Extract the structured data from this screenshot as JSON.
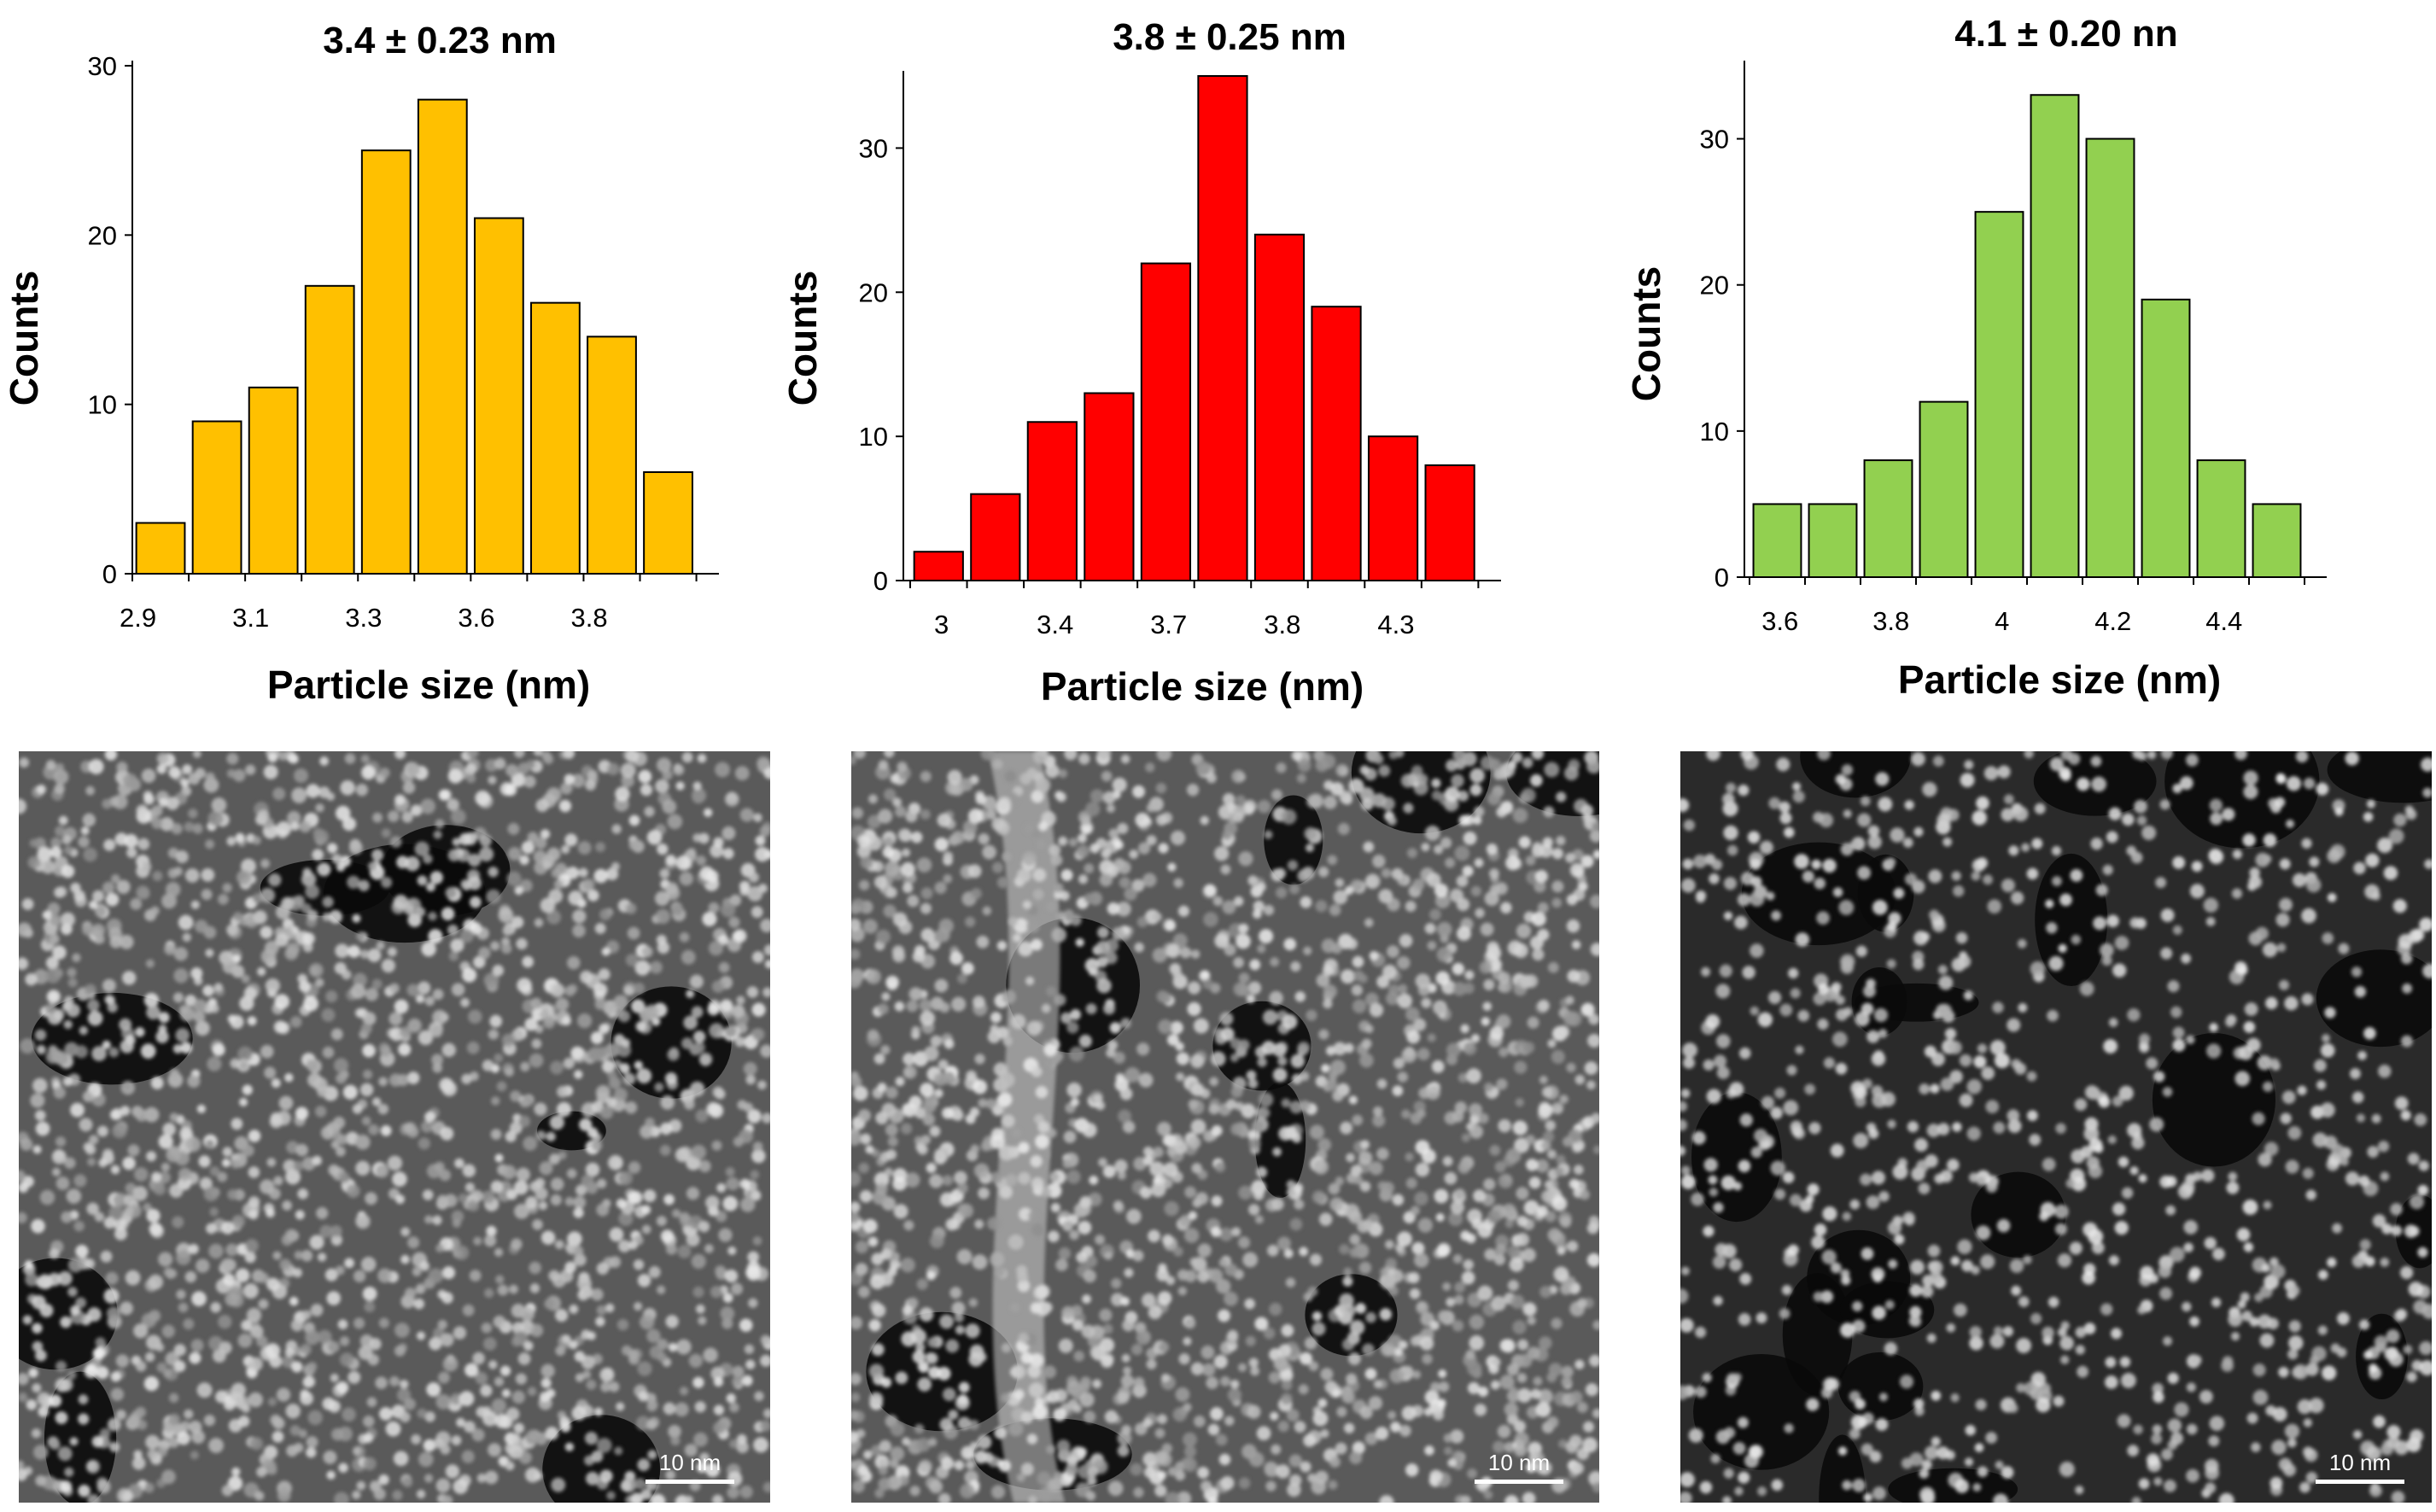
{
  "chart_data": [
    {
      "type": "bar",
      "title": "3.4 ± 0.23 nm",
      "xlabel": "Particle size (nm)",
      "ylabel": "Counts",
      "ylim": [
        0,
        30
      ],
      "yticks": [
        0,
        10,
        20,
        30
      ],
      "x_tick_labels": [
        "2.9",
        "3.1",
        "3.3",
        "3.6",
        "3.8"
      ],
      "values": [
        3,
        9,
        11,
        17,
        25,
        28,
        21,
        16,
        14,
        6
      ],
      "color": "#FFC000"
    },
    {
      "type": "bar",
      "title": "3.8 ± 0.25 nm",
      "xlabel": "Particle size (nm)",
      "ylabel": "Counts",
      "ylim": [
        0,
        35
      ],
      "yticks": [
        0,
        10,
        20,
        30
      ],
      "x_tick_labels": [
        "3",
        "3.4",
        "3.7",
        "3.8",
        "4.3"
      ],
      "values": [
        2,
        6,
        11,
        13,
        22,
        35,
        24,
        19,
        10,
        8
      ],
      "color": "#FF0000"
    },
    {
      "type": "bar",
      "title": "4.1 ± 0.20 nn",
      "xlabel": "Particle size (nm)",
      "ylabel": "Counts",
      "ylim": [
        0,
        35
      ],
      "yticks": [
        0,
        10,
        20,
        30
      ],
      "x_tick_labels": [
        "3.6",
        "3.8",
        "4",
        "4.2",
        "4.4"
      ],
      "values": [
        5,
        5,
        8,
        12,
        25,
        33,
        30,
        19,
        8,
        5
      ],
      "color": "#92D050"
    }
  ],
  "micrographs": [
    {
      "scale_label": "10 nm",
      "tone": "dense"
    },
    {
      "scale_label": "10 nm",
      "tone": "dense-band"
    },
    {
      "scale_label": "10 nm",
      "tone": "dispersed"
    }
  ]
}
